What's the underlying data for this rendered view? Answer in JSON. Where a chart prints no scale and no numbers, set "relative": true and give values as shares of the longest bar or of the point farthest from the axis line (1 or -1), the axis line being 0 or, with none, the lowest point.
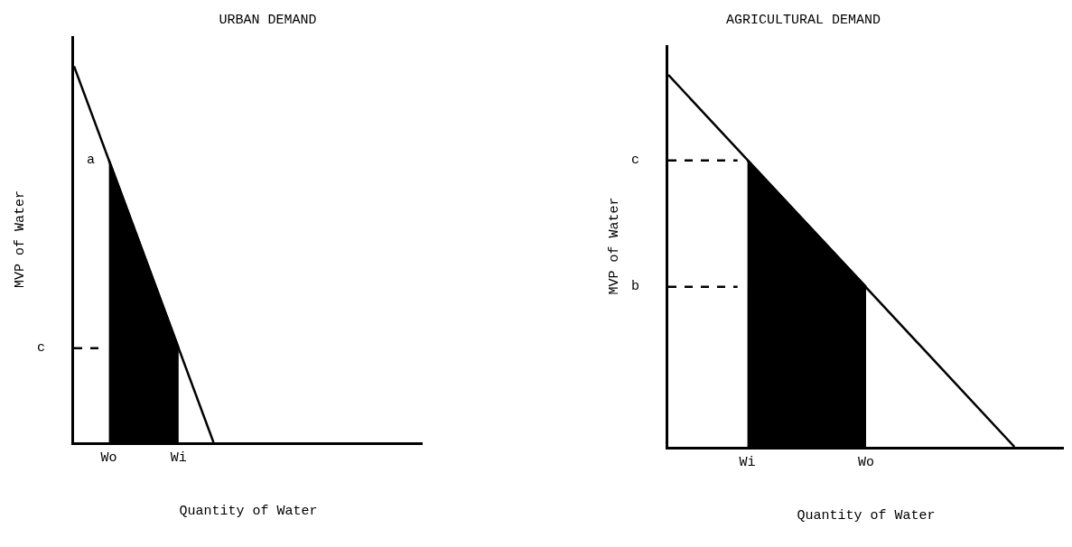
{
  "chart_data": [
    {
      "type": "line",
      "title": "URBAN DEMAND",
      "xlabel": "Quantity of Water",
      "ylabel": "MVP of Water",
      "relative": true,
      "categories": [
        null,
        null,
        null,
        null,
        "Wo",
        null,
        null,
        null,
        null,
        null,
        null,
        null,
        "Wi",
        null,
        null,
        null,
        null,
        null,
        null,
        null,
        null,
        null,
        null,
        null,
        null,
        null,
        null,
        null,
        null,
        null,
        null,
        null,
        null,
        null,
        null,
        null,
        null,
        null,
        null,
        null,
        null
      ],
      "tick_labels": "x",
      "legend": false,
      "series": [
        {
          "type": "area",
          "color": "#000000",
          "values": [
            null,
            null,
            null,
            null,
            0.75,
            null,
            null,
            null,
            null,
            null,
            null,
            null,
            0.25,
            null,
            null,
            null,
            null,
            null,
            null,
            null,
            null,
            null,
            null,
            null,
            null,
            null,
            null,
            null,
            null,
            null,
            null,
            null,
            null,
            null,
            null,
            null,
            null,
            null,
            null,
            null,
            null
          ]
        },
        {
          "color": "#000000",
          "values": [
            1,
            null,
            null,
            null,
            null,
            null,
            null,
            null,
            null,
            null,
            null,
            null,
            null,
            null,
            null,
            null,
            0,
            null,
            null,
            null,
            null,
            null,
            null,
            null,
            null,
            null,
            null,
            null,
            null,
            null,
            null,
            null,
            null,
            null,
            null,
            null,
            null,
            null,
            null,
            null,
            null
          ]
        },
        {
          "name": "c",
          "color": "#000000",
          "line_style": "dashed",
          "values": [
            0.25,
            null,
            null,
            0.25,
            null,
            null,
            null,
            null,
            null,
            null,
            null,
            null,
            null,
            null,
            null,
            null,
            null,
            null,
            null,
            null,
            null,
            null,
            null,
            null,
            null,
            null,
            null,
            null,
            null,
            null,
            null,
            null,
            null,
            null,
            null,
            null,
            null,
            null,
            null,
            null,
            null
          ]
        }
      ],
      "annotations": [
        {
          "text": "a",
          "x": "Wo",
          "y": 0.75
        }
      ]
    },
    {
      "type": "line",
      "title": "AGRICULTURAL DEMAND",
      "xlabel": "Quantity of Water",
      "ylabel": "MVP of Water",
      "relative": true,
      "categories": [
        null,
        null,
        null,
        null,
        null,
        null,
        null,
        null,
        "Wi",
        null,
        null,
        null,
        null,
        null,
        null,
        null,
        null,
        null,
        null,
        null,
        "Wo",
        null,
        null,
        null,
        null,
        null,
        null,
        null,
        null,
        null,
        null,
        null,
        null,
        null,
        null,
        null,
        null,
        null,
        null,
        null,
        null
      ],
      "tick_labels": "x",
      "legend": false,
      "series": [
        {
          "type": "area",
          "color": "#000000",
          "values": [
            null,
            null,
            null,
            null,
            null,
            null,
            null,
            null,
            0.77,
            null,
            null,
            null,
            null,
            null,
            null,
            null,
            null,
            null,
            null,
            null,
            0.43,
            null,
            null,
            null,
            null,
            null,
            null,
            null,
            null,
            null,
            null,
            null,
            null,
            null,
            null,
            null,
            null,
            null,
            null,
            null,
            null
          ]
        },
        {
          "color": "#000000",
          "values": [
            1,
            null,
            null,
            null,
            null,
            null,
            null,
            null,
            null,
            null,
            null,
            null,
            null,
            null,
            null,
            null,
            null,
            null,
            null,
            null,
            null,
            null,
            null,
            null,
            null,
            null,
            null,
            null,
            null,
            null,
            null,
            null,
            null,
            null,
            null,
            0,
            null,
            null,
            null,
            null,
            null
          ]
        },
        {
          "name": "c",
          "color": "#000000",
          "line_style": "dashed",
          "values": [
            0.77,
            null,
            null,
            null,
            null,
            null,
            null,
            0.77,
            null,
            null,
            null,
            null,
            null,
            null,
            null,
            null,
            null,
            null,
            null,
            null,
            null,
            null,
            null,
            null,
            null,
            null,
            null,
            null,
            null,
            null,
            null,
            null,
            null,
            null,
            null,
            null,
            null,
            null,
            null,
            null,
            null
          ]
        },
        {
          "name": "b",
          "color": "#000000",
          "line_style": "dashed",
          "values": [
            0.43,
            null,
            null,
            null,
            null,
            null,
            null,
            0.43,
            null,
            null,
            null,
            null,
            null,
            null,
            null,
            null,
            null,
            null,
            null,
            null,
            null,
            null,
            null,
            null,
            null,
            null,
            null,
            null,
            null,
            null,
            null,
            null,
            null,
            null,
            null,
            null,
            null,
            null,
            null,
            null,
            null
          ]
        }
      ]
    }
  ]
}
